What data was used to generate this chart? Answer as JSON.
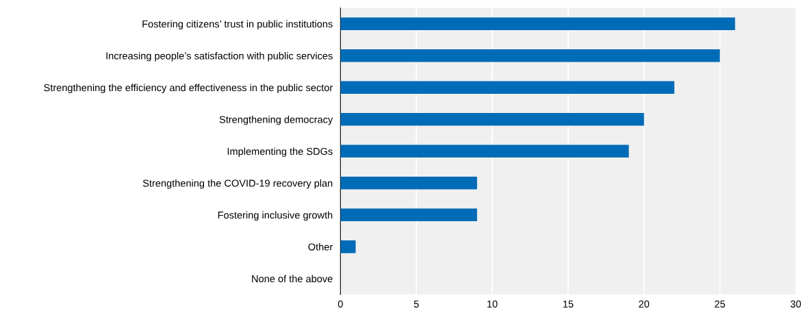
{
  "chart_data": {
    "type": "bar",
    "orientation": "horizontal",
    "categories": [
      "Fostering citizens’ trust in public institutions",
      "Increasing people’s satisfaction with public services",
      "Strengthening the efficiency and effectiveness in the public sector",
      "Strengthening democracy",
      "Implementing the SDGs",
      "Strengthening the COVID-19 recovery plan",
      "Fostering inclusive growth",
      "Other",
      "None of the above"
    ],
    "values": [
      26,
      25,
      22,
      20,
      19,
      9,
      9,
      1,
      0
    ],
    "color": "#006bb6",
    "xlim": [
      0,
      30
    ],
    "xticks": [
      0,
      5,
      10,
      15,
      20,
      25,
      30
    ],
    "grid": "x",
    "legend": false
  }
}
